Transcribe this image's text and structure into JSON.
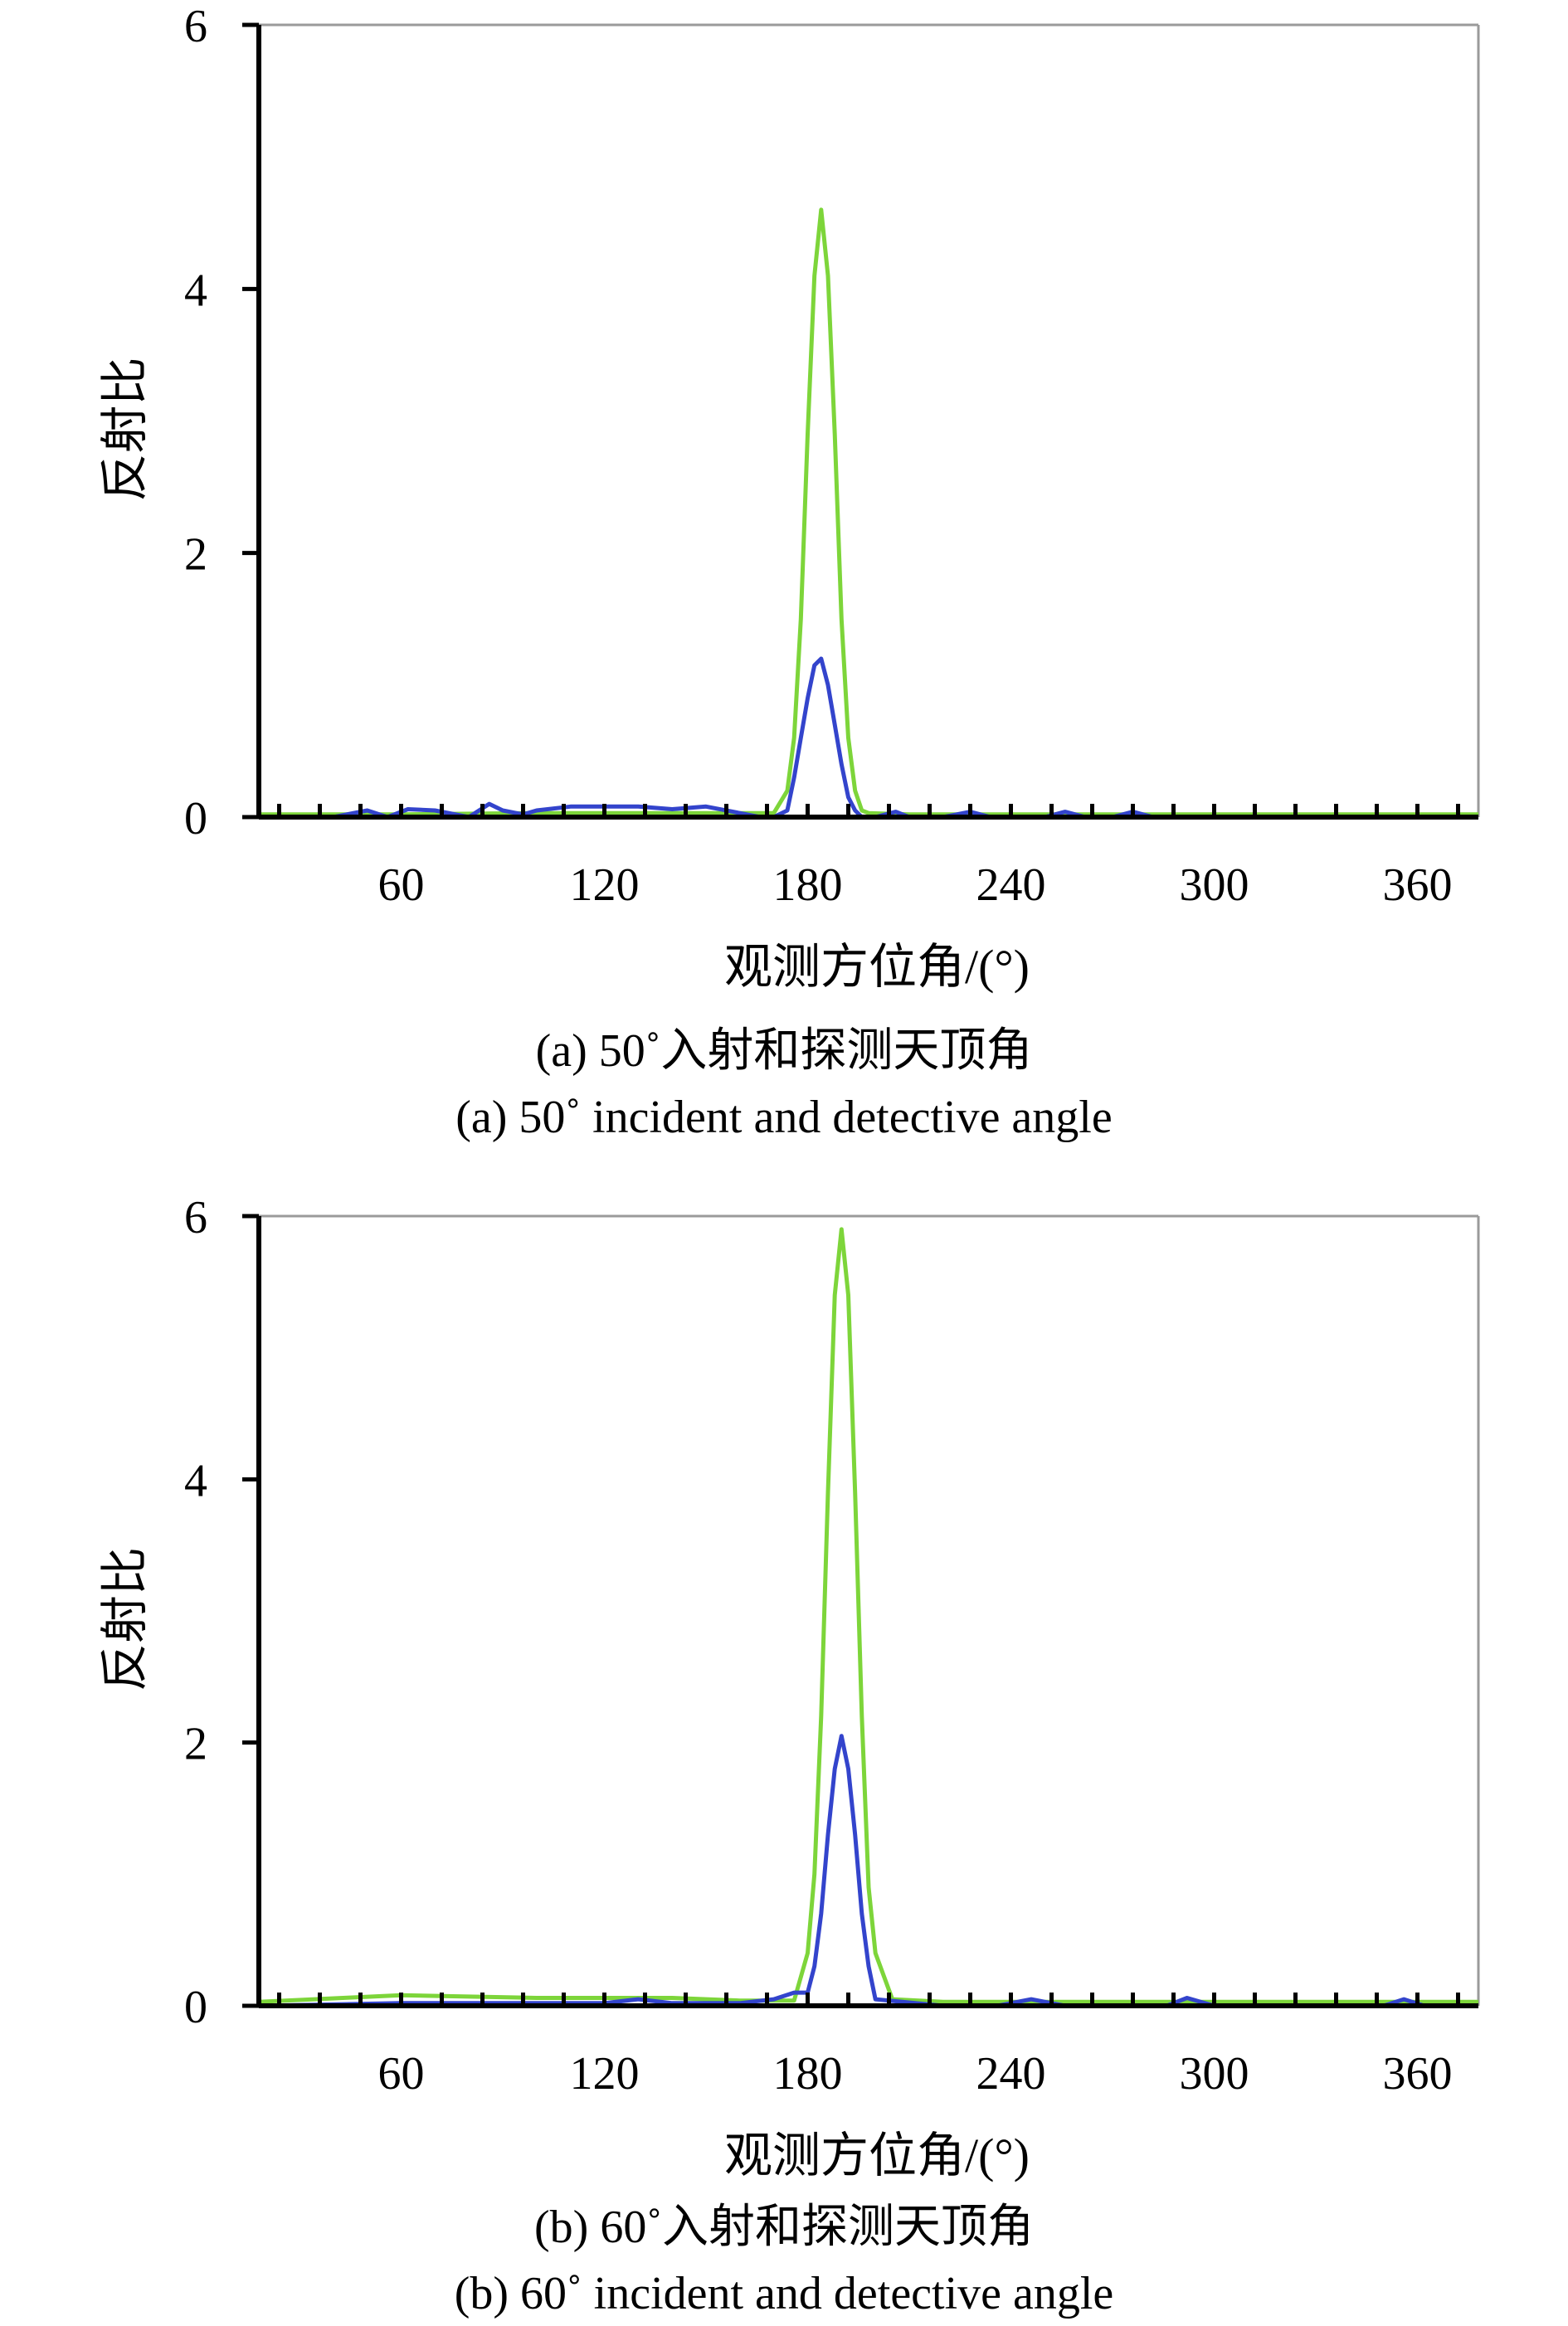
{
  "chart_data": [
    {
      "type": "line",
      "panel_id": "a",
      "xlabel": "观测方位角/(°)",
      "ylabel": "反射比",
      "xlim": [
        18,
        378
      ],
      "ylim": [
        0,
        6
      ],
      "xticks": [
        60,
        120,
        180,
        240,
        300,
        360
      ],
      "yticks": [
        0,
        2,
        4,
        6
      ],
      "grid": false,
      "caption_cn": "(a) 50˚入射和探测天顶角",
      "caption_en": "(a) 50˚ incident and detective angle",
      "series": [
        {
          "color": "#7dd53a",
          "x": [
            18,
            60,
            100,
            150,
            170,
            174,
            176,
            178,
            180,
            182,
            184,
            186,
            188,
            190,
            192,
            194,
            196,
            198,
            210,
            240,
            300,
            378
          ],
          "y": [
            0.02,
            0.02,
            0.03,
            0.03,
            0.03,
            0.2,
            0.6,
            1.5,
            2.9,
            4.1,
            4.6,
            4.1,
            2.9,
            1.5,
            0.6,
            0.2,
            0.05,
            0.03,
            0.02,
            0.02,
            0.02,
            0.02
          ]
        },
        {
          "color": "#3344cc",
          "x": [
            18,
            40,
            50,
            56,
            62,
            70,
            80,
            86,
            90,
            96,
            100,
            110,
            120,
            130,
            140,
            150,
            158,
            166,
            170,
            174,
            176,
            178,
            180,
            182,
            184,
            186,
            188,
            190,
            192,
            194,
            196,
            200,
            206,
            210,
            220,
            228,
            234,
            250,
            256,
            262,
            270,
            276,
            282,
            300,
            378
          ],
          "y": [
            0.0,
            0.0,
            0.05,
            0.0,
            0.06,
            0.05,
            0.0,
            0.1,
            0.05,
            0.02,
            0.05,
            0.08,
            0.08,
            0.08,
            0.06,
            0.08,
            0.04,
            0.0,
            0.0,
            0.05,
            0.3,
            0.6,
            0.9,
            1.15,
            1.2,
            1.0,
            0.7,
            0.4,
            0.15,
            0.05,
            0.0,
            0.0,
            0.04,
            0.0,
            0.0,
            0.04,
            0.0,
            0.0,
            0.04,
            0.0,
            0.0,
            0.04,
            0.0,
            0.0,
            0.0
          ]
        }
      ]
    },
    {
      "type": "line",
      "panel_id": "b",
      "xlabel": "观测方位角/(°)",
      "ylabel": "反射比",
      "xlim": [
        18,
        378
      ],
      "ylim": [
        0,
        6
      ],
      "xticks": [
        60,
        120,
        180,
        240,
        300,
        360
      ],
      "yticks": [
        0,
        2,
        4,
        6
      ],
      "grid": false,
      "caption_cn": "(b) 60˚入射和探测天顶角",
      "caption_en": "(b) 60˚ incident and detective angle",
      "series": [
        {
          "color": "#7dd53a",
          "x": [
            18,
            60,
            100,
            140,
            160,
            176,
            180,
            182,
            184,
            186,
            188,
            190,
            192,
            194,
            196,
            198,
            200,
            205,
            220,
            260,
            300,
            378
          ],
          "y": [
            0.03,
            0.08,
            0.06,
            0.06,
            0.04,
            0.04,
            0.4,
            1.0,
            2.2,
            3.9,
            5.4,
            5.9,
            5.4,
            3.9,
            2.2,
            0.9,
            0.4,
            0.05,
            0.03,
            0.03,
            0.03,
            0.03
          ]
        },
        {
          "color": "#3344cc",
          "x": [
            18,
            60,
            120,
            130,
            140,
            160,
            170,
            176,
            180,
            182,
            184,
            186,
            188,
            190,
            192,
            194,
            196,
            198,
            200,
            220,
            236,
            246,
            256,
            286,
            292,
            300,
            350,
            356,
            362,
            378
          ],
          "y": [
            0.0,
            0.02,
            0.02,
            0.05,
            0.02,
            0.02,
            0.05,
            0.1,
            0.1,
            0.3,
            0.7,
            1.3,
            1.8,
            2.05,
            1.8,
            1.3,
            0.7,
            0.3,
            0.05,
            0.0,
            0.0,
            0.05,
            0.0,
            0.0,
            0.06,
            0.0,
            0.0,
            0.05,
            0.0,
            0.0
          ]
        }
      ]
    }
  ]
}
